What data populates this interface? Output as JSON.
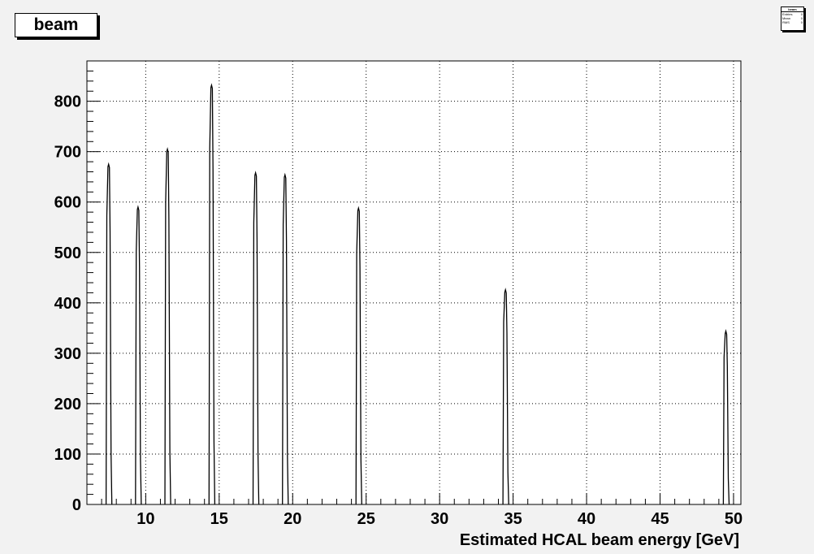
{
  "chart_data": {
    "type": "bar",
    "title": "beam",
    "xlabel": "Estimated HCAL beam energy [GeV]",
    "ylabel": "",
    "xlim": [
      6,
      50.5
    ],
    "ylim": [
      0,
      880
    ],
    "x_ticks": [
      10,
      15,
      20,
      25,
      30,
      35,
      40,
      45,
      50
    ],
    "y_ticks": [
      0,
      100,
      200,
      300,
      400,
      500,
      600,
      700,
      800
    ],
    "grid": true,
    "peaks": [
      {
        "x": 7.5,
        "y": 675
      },
      {
        "x": 9.5,
        "y": 590
      },
      {
        "x": 11.5,
        "y": 705
      },
      {
        "x": 14.5,
        "y": 832
      },
      {
        "x": 17.5,
        "y": 658
      },
      {
        "x": 19.5,
        "y": 654
      },
      {
        "x": 24.5,
        "y": 588
      },
      {
        "x": 34.5,
        "y": 426
      },
      {
        "x": 49.5,
        "y": 344
      }
    ],
    "stats_box": {
      "title": "beam",
      "rows": [
        {
          "label": "Entries",
          "value": "0"
        },
        {
          "label": "Mean",
          "value": "0"
        },
        {
          "label": "RMS",
          "value": "0"
        }
      ]
    }
  }
}
